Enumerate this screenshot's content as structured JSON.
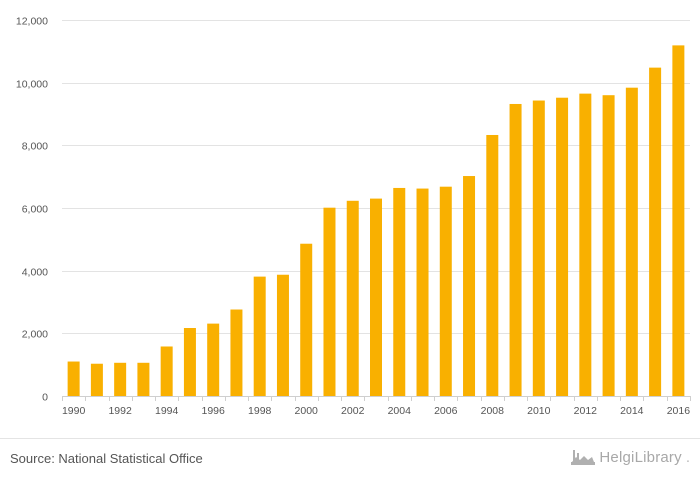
{
  "chart_data": {
    "type": "bar",
    "title": "",
    "xlabel": "",
    "ylabel": "",
    "categories": [
      "1990",
      "1991",
      "1992",
      "1993",
      "1994",
      "1995",
      "1996",
      "1997",
      "1998",
      "1999",
      "2000",
      "2001",
      "2002",
      "2003",
      "2004",
      "2005",
      "2006",
      "2007",
      "2008",
      "2009",
      "2010",
      "2011",
      "2012",
      "2013",
      "2014",
      "2015",
      "2016"
    ],
    "values": [
      1100,
      1030,
      1060,
      1060,
      1580,
      2170,
      2310,
      2760,
      3810,
      3870,
      4860,
      6010,
      6230,
      6300,
      6640,
      6620,
      6680,
      7020,
      8330,
      9320,
      9430,
      9520,
      9650,
      9600,
      9840,
      10480,
      11190
    ],
    "x_tick_labels": [
      "1990",
      "1992",
      "1994",
      "1996",
      "1998",
      "2000",
      "2002",
      "2004",
      "2006",
      "2008",
      "2010",
      "2012",
      "2014",
      "2016"
    ],
    "y_ticks": [
      0,
      2000,
      4000,
      6000,
      8000,
      10000,
      12000
    ],
    "y_tick_labels": [
      "0",
      "2,000",
      "4,000",
      "6,000",
      "8,000",
      "10,000",
      "12,000"
    ],
    "ylim": [
      0,
      12000
    ],
    "grid": true,
    "legend": "none",
    "bar_color": "#f9b000",
    "grid_color": "#e3e3e3",
    "axis_color": "#cfcfcf",
    "label_color": "#555555"
  },
  "footer": {
    "source": "Source: National Statistical Office",
    "brand_name": "HelgiLibrary",
    "brand_suffix": ".",
    "brand_icon": "factory-icon"
  }
}
